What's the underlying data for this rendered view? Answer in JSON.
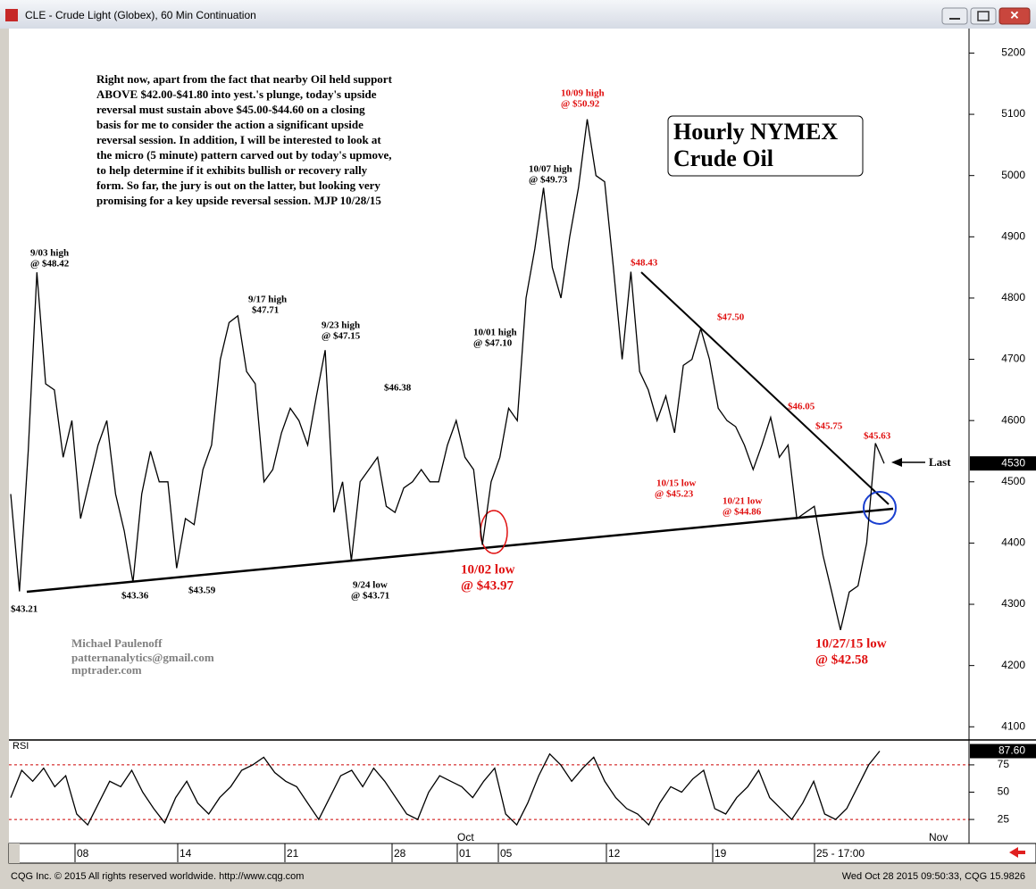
{
  "window": {
    "title": "CLE - Crude Light (Globex), 60 Min Continuation"
  },
  "footer": {
    "left": "CQG Inc. © 2015 All rights reserved worldwide. http://www.cqg.com",
    "right": "Wed Oct 28 2015 09:50:33, CQG 15.9826"
  },
  "chart_data": [
    {
      "type": "line",
      "color": "#000000",
      "title_box": [
        "Hourly NYMEX",
        "Crude Oil"
      ],
      "commentary": [
        "Right now, apart from the fact that nearby Oil held support",
        "ABOVE $42.00-$41.80 into yest.'s plunge, today's upside",
        "reversal must sustain above $45.00-$44.60 on a closing",
        "basis for me to consider the action a significant upside",
        "reversal session. In addition, I will be interested to look at",
        "the micro (5 minute) pattern carved out by today's upmove,",
        "to help determine if it exhibits bullish or recovery rally",
        "form. So far, the jury is out on the latter, but looking very",
        "promising for a key upside reversal session. MJP 10/28/15"
      ],
      "annotations": [
        "9/03 high",
        "@ $48.42",
        "9/17 high",
        "$47.71",
        "9/23 high",
        "@ $47.15",
        "10/01 high",
        "@ $47.10",
        "$46.38",
        "10/07 high",
        "@ $49.73",
        "10/09 high",
        "@ $50.92",
        "$48.43",
        "$47.50",
        "$46.05",
        "$45.75",
        "$45.63",
        "10/15 low",
        "@ $45.23",
        "10/21 low",
        "@ $44.86",
        "$43.21",
        "$43.36",
        "$43.59",
        "9/24 low",
        "@ $43.71",
        "10/02 low",
        "@ $43.97",
        "10/27/15 low",
        "@ $42.58",
        "Michael Paulenoff",
        "patternanalytics@gmail.com",
        "mptrader.com",
        "Last"
      ],
      "values": [
        4480,
        4321,
        4550,
        4842,
        4660,
        4650,
        4540,
        4600,
        4440,
        4500,
        4560,
        4600,
        4480,
        4420,
        4336,
        4480,
        4550,
        4500,
        4500,
        4359,
        4440,
        4430,
        4520,
        4560,
        4700,
        4760,
        4771,
        4680,
        4660,
        4500,
        4520,
        4580,
        4620,
        4600,
        4560,
        4640,
        4715,
        4450,
        4500,
        4371,
        4500,
        4520,
        4540,
        4460,
        4450,
        4490,
        4500,
        4520,
        4500,
        4500,
        4560,
        4600,
        4540,
        4520,
        4397,
        4500,
        4540,
        4620,
        4600,
        4800,
        4880,
        4980,
        4850,
        4800,
        4900,
        4980,
        5092,
        5000,
        4990,
        4850,
        4700,
        4843,
        4680,
        4650,
        4600,
        4640,
        4580,
        4690,
        4700,
        4750,
        4700,
        4620,
        4600,
        4590,
        4560,
        4520,
        4560,
        4605,
        4540,
        4560,
        4440,
        4450,
        4460,
        4380,
        4320,
        4258,
        4320,
        4330,
        4400,
        4563,
        4530
      ],
      "ylim": [
        4080,
        5240
      ],
      "yticks": [
        4100,
        4200,
        4300,
        4400,
        4500,
        4600,
        4700,
        4800,
        4900,
        5000,
        5100,
        5200
      ],
      "last_value": 4530
    },
    {
      "type": "line",
      "color": "#000000",
      "title": "RSI",
      "values": [
        45,
        70,
        60,
        72,
        55,
        65,
        30,
        20,
        40,
        60,
        55,
        70,
        50,
        35,
        22,
        45,
        60,
        40,
        30,
        45,
        55,
        70,
        75,
        82,
        68,
        60,
        55,
        40,
        25,
        45,
        65,
        70,
        55,
        72,
        60,
        45,
        30,
        25,
        50,
        65,
        60,
        55,
        45,
        60,
        72,
        30,
        20,
        40,
        65,
        85,
        75,
        60,
        72,
        82,
        60,
        45,
        35,
        30,
        20,
        40,
        55,
        50,
        62,
        70,
        35,
        30,
        45,
        55,
        70,
        45,
        35,
        25,
        40,
        60,
        30,
        25,
        35,
        55,
        75,
        87.6
      ],
      "ylim": [
        3,
        97
      ],
      "yticks": [
        25,
        50,
        75
      ],
      "levels": [
        75,
        25
      ],
      "level_color": "#cc0000",
      "last_value": {
        "value": 87.6,
        "label": "87.60"
      },
      "x_labels": [
        "08",
        "14",
        "21",
        "28",
        "01",
        "05",
        "12",
        "19",
        "25 - 17:00"
      ],
      "month_labels": [
        "Oct",
        "Nov"
      ]
    }
  ]
}
